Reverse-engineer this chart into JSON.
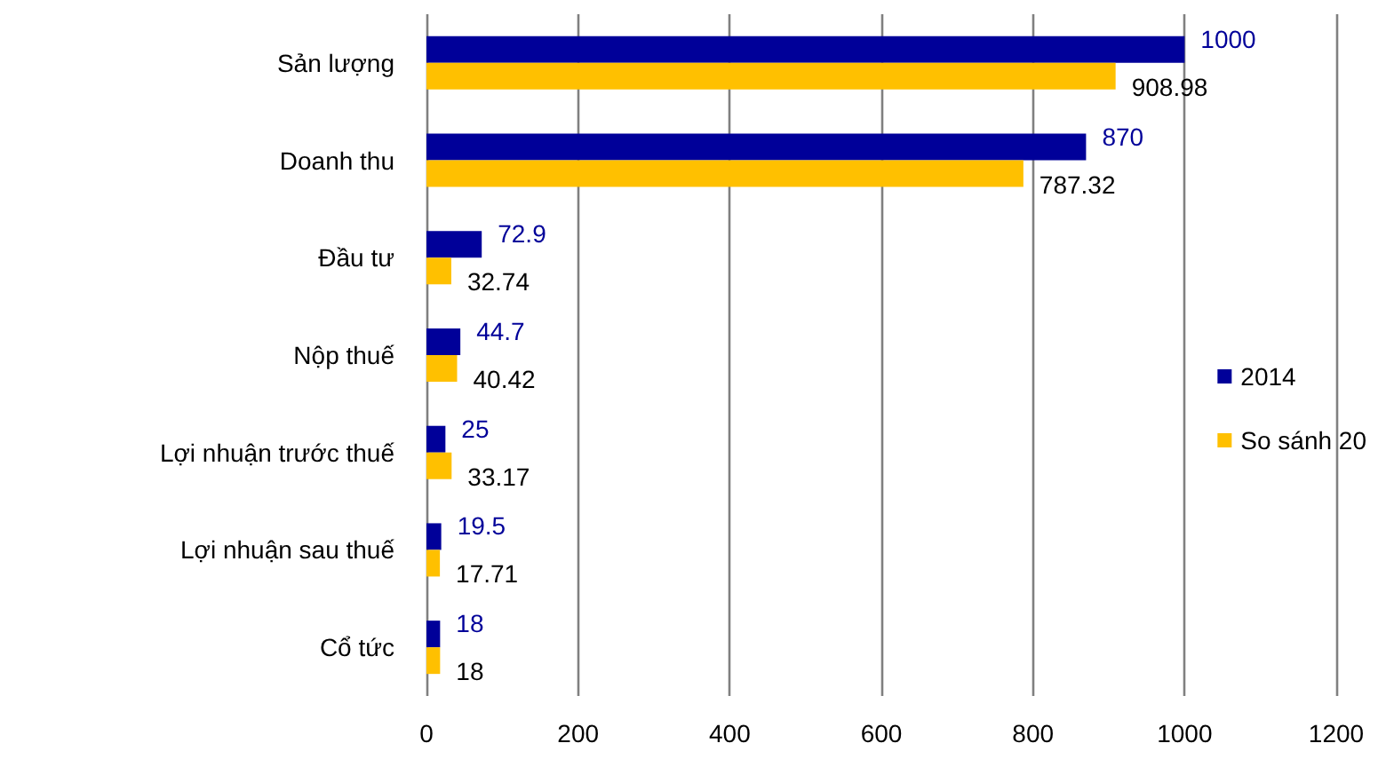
{
  "chart_data": {
    "type": "bar",
    "orientation": "horizontal",
    "categories": [
      "Sản lượng",
      "Doanh thu",
      "Đầu tư",
      "Nộp thuế",
      "Lợi nhuận trước thuế",
      "Lợi nhuận sau thuế",
      "Cổ tức"
    ],
    "series": [
      {
        "name": "2014",
        "color": "#000099",
        "values": [
          1000,
          870,
          72.9,
          44.7,
          25,
          19.5,
          18
        ]
      },
      {
        "name": "So sánh 20",
        "color": "#ffc000",
        "values": [
          908.98,
          787.32,
          32.74,
          40.42,
          33.17,
          17.71,
          18
        ]
      }
    ],
    "xlim": [
      0,
      1200
    ],
    "xticks": [
      0,
      200,
      400,
      600,
      800,
      1000,
      1200
    ],
    "grid": "x",
    "legend": "right",
    "data_labels": true
  }
}
